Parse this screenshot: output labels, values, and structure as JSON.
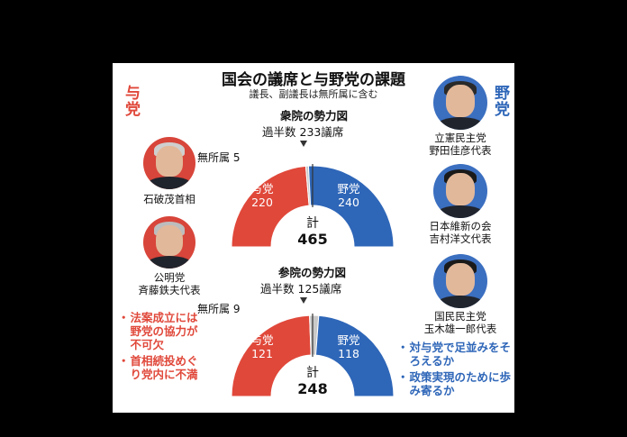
{
  "title": "国会の議席と与野党の課題",
  "subtitle": "議長、副議長は無所属に含む",
  "side_labels": {
    "ruling": "与党",
    "opposition": "野党"
  },
  "leaders": {
    "ruling": [
      {
        "lines": [
          "石破茂首相"
        ]
      },
      {
        "lines": [
          "公明党",
          "斉藤鉄夫代表"
        ]
      }
    ],
    "opposition": [
      {
        "lines": [
          "立憲民主党",
          "野田佳彦代表"
        ]
      },
      {
        "lines": [
          "日本維新の会",
          "吉村洋文代表"
        ]
      },
      {
        "lines": [
          "国民民主党",
          "玉木雄一郎代表"
        ]
      }
    ]
  },
  "issues": {
    "ruling": [
      "法案成立には野党の協力が不可欠",
      "首相続投めぐり党内に不満"
    ],
    "opposition": [
      "対与党で足並みをそろえるか",
      "政策実現のために歩み寄るか"
    ]
  },
  "bullet_mark": "・",
  "colors": {
    "ruling": "#e0483a",
    "opposition": "#2e66b8",
    "independent": "#c9c9c9"
  },
  "chart_data": [
    {
      "type": "pie",
      "title": "衆院の勢力図",
      "majority_label": "過半数",
      "majority_value": "233議席",
      "categories": [
        "与党",
        "無所属",
        "野党"
      ],
      "values": [
        220,
        5,
        240
      ],
      "independent_label": "無所属",
      "total_label": "計",
      "total": 465,
      "shape": "semicircle"
    },
    {
      "type": "pie",
      "title": "参院の勢力図",
      "majority_label": "過半数",
      "majority_value": "125議席",
      "categories": [
        "与党",
        "無所属",
        "野党"
      ],
      "values": [
        121,
        9,
        118
      ],
      "independent_label": "無所属",
      "total_label": "計",
      "total": 248,
      "shape": "semicircle"
    }
  ]
}
